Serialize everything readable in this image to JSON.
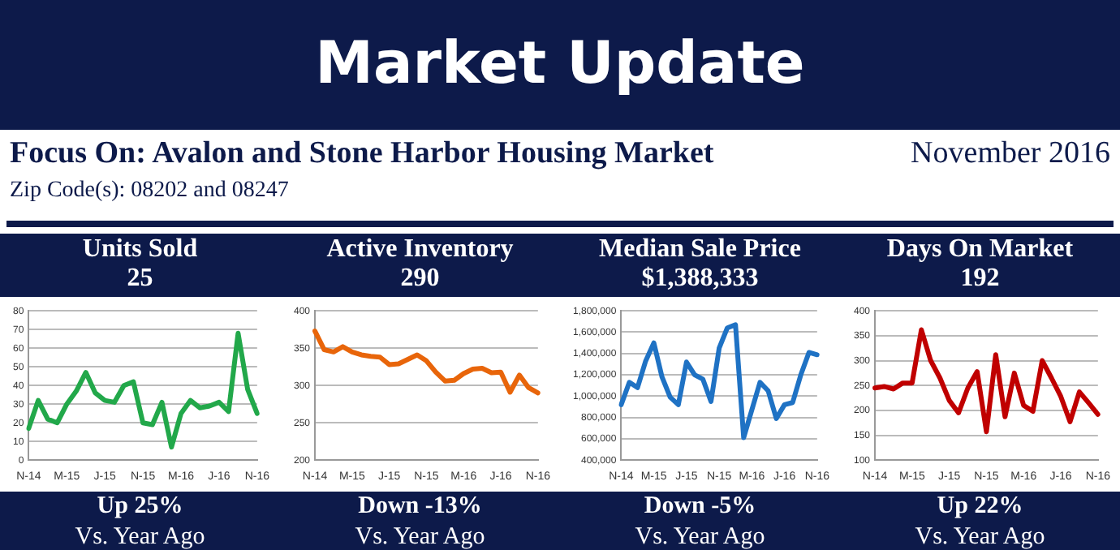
{
  "chart_data": [
    {
      "type": "other",
      "title": "Market Update",
      "subtitle": "Focus On: Avalon and Stone Harbor Housing Market",
      "annotations": [
        "November 2016",
        "Zip Code(s): 08202 and 08247"
      ]
    },
    {
      "type": "line",
      "title": "Units Sold",
      "subtitle": "25",
      "categories": [
        "N-14",
        null,
        null,
        null,
        "M-15",
        null,
        null,
        null,
        "J-15",
        null,
        null,
        null,
        "N-15",
        null,
        null,
        null,
        "M-16",
        null,
        null,
        null,
        "J-16",
        null,
        null,
        null,
        "N-16"
      ],
      "series": [
        {
          "color": "#22a84a",
          "values": [
            17,
            32,
            22,
            20,
            30,
            37,
            47,
            36,
            32,
            31,
            40,
            42,
            20,
            19,
            31,
            7,
            25,
            32,
            28,
            29,
            31,
            26,
            68,
            38,
            25
          ]
        }
      ],
      "ylim": [
        0,
        80
      ],
      "yticks": [
        0,
        10,
        20,
        30,
        40,
        50,
        60,
        70,
        80
      ],
      "grid": "y",
      "legend": false,
      "marker": "none",
      "annotations": [
        "Up 25%",
        "Vs. Year Ago"
      ]
    },
    {
      "type": "line",
      "title": "Active Inventory",
      "subtitle": "290",
      "categories": [
        "N-14",
        null,
        null,
        null,
        "M-15",
        null,
        null,
        null,
        "J-15",
        null,
        null,
        null,
        "N-15",
        null,
        null,
        null,
        "M-16",
        null,
        null,
        null,
        "J-16",
        null,
        null,
        null,
        "N-16"
      ],
      "series": [
        {
          "color": "#e8650a",
          "values": [
            373,
            348,
            345,
            352,
            345,
            341,
            339,
            338,
            328,
            329,
            335,
            341,
            333,
            318,
            306,
            307,
            316,
            322,
            323,
            317,
            318,
            291,
            314,
            297,
            290
          ]
        }
      ],
      "ylim": [
        200,
        400
      ],
      "yticks": [
        200,
        250,
        300,
        350,
        400
      ],
      "grid": "y",
      "legend": false,
      "marker": "none",
      "annotations": [
        "Down -13%",
        "Vs. Year Ago"
      ]
    },
    {
      "type": "line",
      "title": "Median Sale Price",
      "subtitle": "$1,388,333",
      "categories": [
        "N-14",
        null,
        null,
        null,
        "M-15",
        null,
        null,
        null,
        "J-15",
        null,
        null,
        null,
        "N-15",
        null,
        null,
        null,
        "M-16",
        null,
        null,
        null,
        "J-16",
        null,
        null,
        null,
        "N-16"
      ],
      "series": [
        {
          "color": "#1f72c4",
          "values": [
            920000,
            1130000,
            1080000,
            1330000,
            1500000,
            1180000,
            990000,
            920000,
            1320000,
            1200000,
            1160000,
            950000,
            1450000,
            1640000,
            1670000,
            610000,
            870000,
            1130000,
            1050000,
            790000,
            920000,
            940000,
            1200000,
            1410000,
            1388333
          ]
        }
      ],
      "ylim": [
        400000,
        1800000
      ],
      "yticks": [
        {
          "value": 400000,
          "label": "400,000"
        },
        {
          "value": 600000,
          "label": "600,000"
        },
        {
          "value": 800000,
          "label": "800,000"
        },
        {
          "value": 1000000,
          "label": "1,000,000"
        },
        {
          "value": 1200000,
          "label": "1,200,000"
        },
        {
          "value": 1400000,
          "label": "1,400,000"
        },
        {
          "value": 1600000,
          "label": "1,600,000"
        },
        {
          "value": 1800000,
          "label": "1,800,000"
        }
      ],
      "grid": "y",
      "legend": false,
      "marker": "none",
      "annotations": [
        "Down -5%",
        "Vs. Year Ago"
      ]
    },
    {
      "type": "line",
      "title": "Days On Market",
      "subtitle": "192",
      "categories": [
        "N-14",
        null,
        null,
        null,
        "M-15",
        null,
        null,
        null,
        "J-15",
        null,
        null,
        null,
        "N-15",
        null,
        null,
        null,
        "M-16",
        null,
        null,
        null,
        "J-16",
        null,
        null,
        null,
        "N-16"
      ],
      "series": [
        {
          "color": "#c00000",
          "values": [
            245,
            248,
            243,
            255,
            255,
            362,
            300,
            265,
            220,
            195,
            245,
            278,
            157,
            312,
            187,
            275,
            210,
            198,
            300,
            265,
            228,
            177,
            237,
            215,
            192
          ]
        }
      ],
      "ylim": [
        100,
        400
      ],
      "yticks": [
        100,
        150,
        200,
        250,
        300,
        350,
        400
      ],
      "grid": "y",
      "legend": false,
      "marker": "none",
      "annotations": [
        "Up 22%",
        "Vs. Year Ago"
      ]
    }
  ]
}
